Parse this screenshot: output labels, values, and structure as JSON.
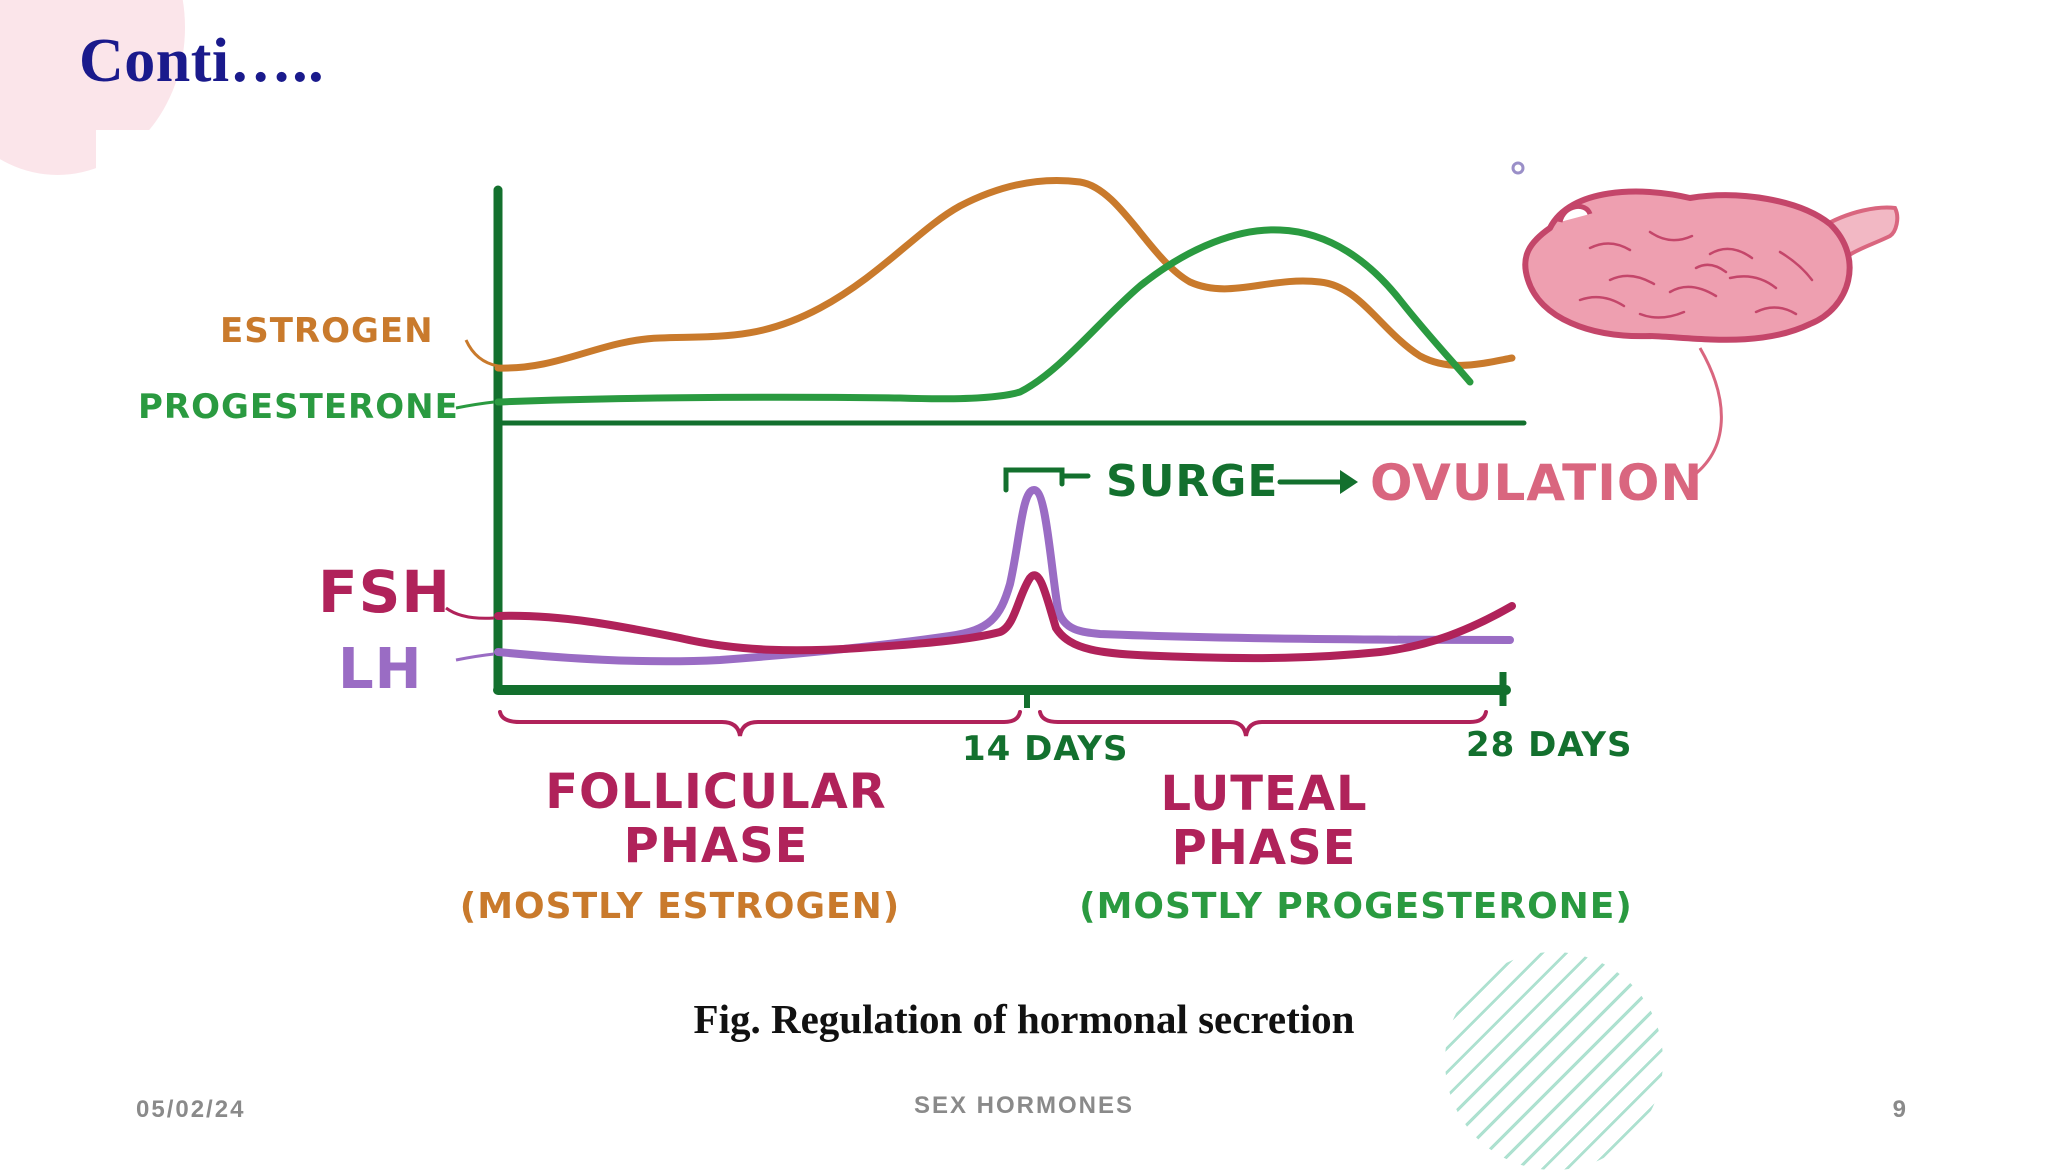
{
  "slide": {
    "title": "Conti…..",
    "caption": "Fig. Regulation of hormonal secretion",
    "footer": {
      "date": "05/02/24",
      "center": "SEX HORMONES",
      "page": "9"
    }
  },
  "figure": {
    "labels": {
      "estrogen": "ESTROGEN",
      "progesterone": "PROGESTERONE",
      "fsh": "FSH",
      "lh": "LH",
      "surge": "SURGE",
      "ovulation": "OVULATION",
      "day14": "14 DAYS",
      "day28": "28 DAYS",
      "follicular_line1": "FOLLICULAR",
      "follicular_line2": "PHASE",
      "follicular_note": "(MOSTLY ESTROGEN)",
      "luteal_line1": "LUTEAL",
      "luteal_line2": "PHASE",
      "luteal_note": "(MOSTLY PROGESTERONE)"
    },
    "colors": {
      "axis": "#13702e",
      "estrogen": "#c97a2c",
      "progesterone": "#2a9a40",
      "fsh": "#b0225a",
      "lh": "#9a6cc4",
      "ovary": "#d9667f",
      "ovary_fill": "#ee9fb0"
    },
    "icons": [
      "ovary-illustration"
    ]
  }
}
